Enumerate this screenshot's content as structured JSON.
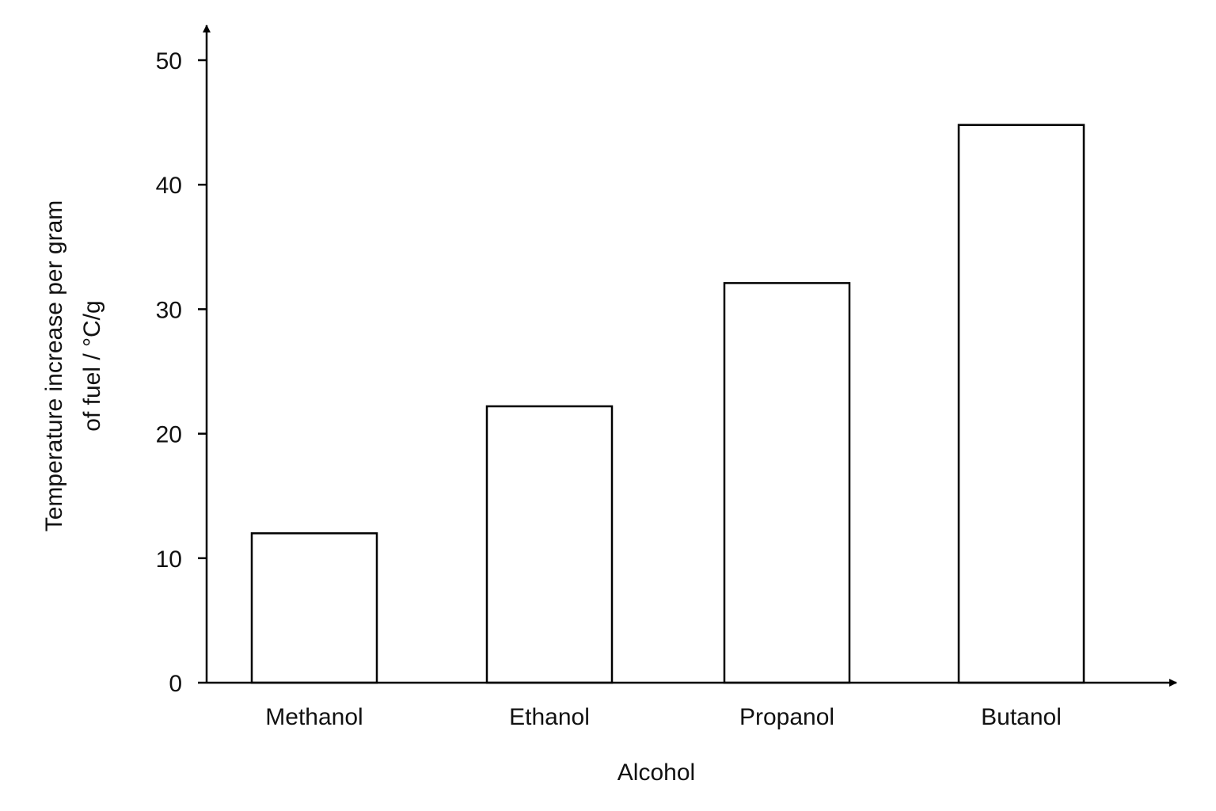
{
  "chart_data": {
    "type": "bar",
    "title": "",
    "xlabel": "Alcohol",
    "ylabel_lines": [
      "Temperature increase per gram",
      "of fuel / °C/g"
    ],
    "categories": [
      "Methanol",
      "Ethanol",
      "Propanol",
      "Butanol"
    ],
    "values": [
      12,
      22.2,
      32.1,
      44.8
    ],
    "ylim": [
      0,
      50
    ],
    "yticks": [
      0,
      10,
      20,
      30,
      40,
      50
    ],
    "grid": false,
    "legend": "none",
    "bar_fill": "#ffffff",
    "bar_stroke": "#000000"
  }
}
